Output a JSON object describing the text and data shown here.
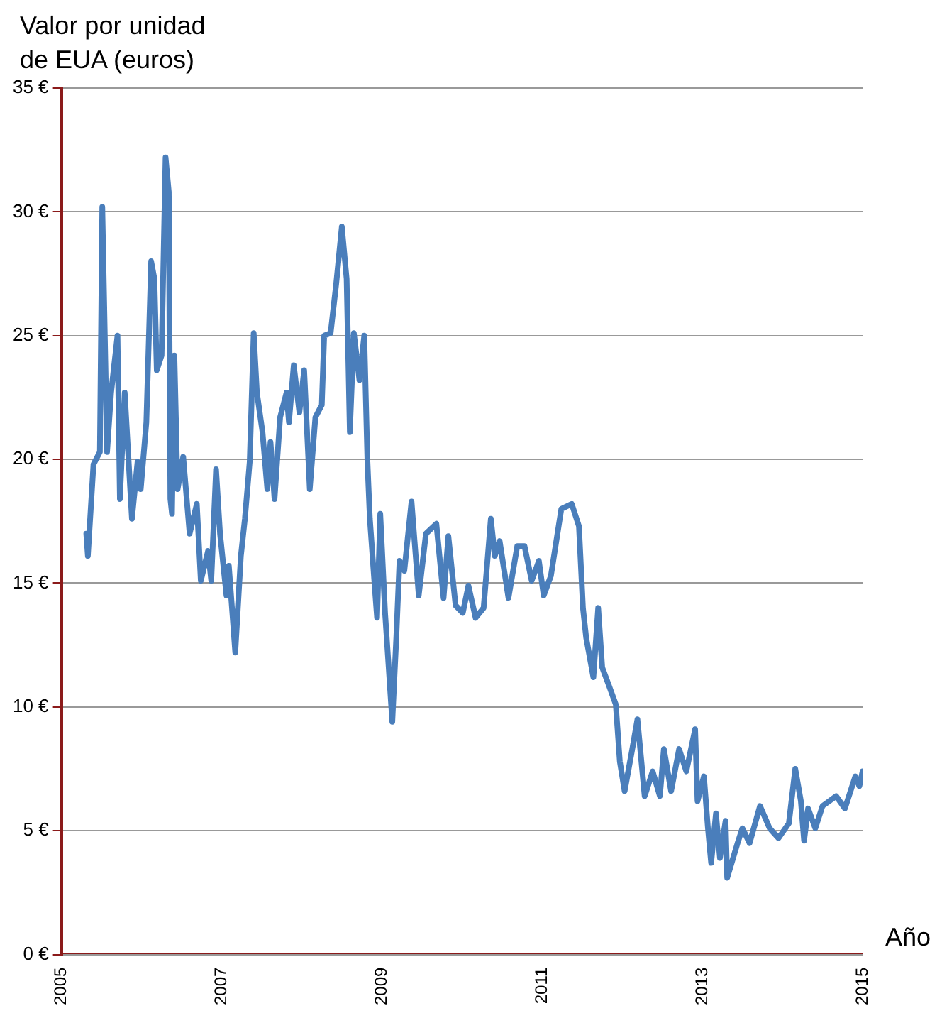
{
  "chart_data": {
    "type": "line",
    "ylabel": "Valor por unidad\nde EUA (euros)",
    "xlabel": "Año",
    "xlim": [
      2005,
      2015
    ],
    "xticks": [
      2005,
      2007,
      2009,
      2011,
      2013,
      2015
    ],
    "ylim": [
      0,
      35
    ],
    "yticks": [
      {
        "value": 0,
        "label": "0 €"
      },
      {
        "value": 5,
        "label": "5 €"
      },
      {
        "value": 10,
        "label": "10 €"
      },
      {
        "value": 15,
        "label": "15 €"
      },
      {
        "value": 20,
        "label": "20 €"
      },
      {
        "value": 25,
        "label": "25 €"
      },
      {
        "value": 30,
        "label": "30 €"
      },
      {
        "value": 35,
        "label": "35 €"
      }
    ],
    "grid": "y",
    "legend": false,
    "marker": "none",
    "line_style": "solid",
    "series": [
      {
        "color": "#4a7ebb",
        "x": [
          2005.31,
          2005.33,
          2005.4,
          2005.48,
          2005.51,
          2005.57,
          2005.62,
          2005.7,
          2005.73,
          2005.79,
          2005.88,
          2005.95,
          2005.99,
          2006.06,
          2006.12,
          2006.16,
          2006.19,
          2006.25,
          2006.3,
          2006.34,
          2006.36,
          2006.38,
          2006.41,
          2006.45,
          2006.52,
          2006.6,
          2006.69,
          2006.74,
          2006.83,
          2006.87,
          2006.93,
          2006.98,
          2007.06,
          2007.09,
          2007.17,
          2007.24,
          2007.29,
          2007.35,
          2007.4,
          2007.44,
          2007.51,
          2007.57,
          2007.61,
          2007.66,
          2007.73,
          2007.81,
          2007.84,
          2007.9,
          2007.97,
          2008.03,
          2008.1,
          2008.17,
          2008.25,
          2008.28,
          2008.36,
          2008.43,
          2008.5,
          2008.56,
          2008.6,
          2008.65,
          2008.72,
          2008.78,
          2008.82,
          2008.85,
          2008.91,
          2008.94,
          2008.98,
          2009.04,
          2009.13,
          2009.18,
          2009.22,
          2009.28,
          2009.37,
          2009.46,
          2009.55,
          2009.68,
          2009.77,
          2009.83,
          2009.92,
          2010.01,
          2010.08,
          2010.17,
          2010.27,
          2010.36,
          2010.41,
          2010.47,
          2010.58,
          2010.69,
          2010.78,
          2010.87,
          2010.96,
          2011.02,
          2011.11,
          2011.24,
          2011.37,
          2011.46,
          2011.51,
          2011.55,
          2011.64,
          2011.7,
          2011.75,
          2011.83,
          2011.92,
          2011.97,
          2012.03,
          2012.12,
          2012.19,
          2012.28,
          2012.38,
          2012.47,
          2012.52,
          2012.61,
          2012.71,
          2012.8,
          2012.91,
          2012.94,
          2013.02,
          2013.07,
          2013.11,
          2013.17,
          2013.22,
          2013.29,
          2013.31,
          2013.44,
          2013.5,
          2013.59,
          2013.72,
          2013.84,
          2013.95,
          2014.08,
          2014.16,
          2014.23,
          2014.27,
          2014.32,
          2014.41,
          2014.5,
          2014.67,
          2014.78,
          2014.91,
          2014.96,
          2015.0
        ],
        "values": [
          17.0,
          16.1,
          19.8,
          20.3,
          30.2,
          20.3,
          22.7,
          25.0,
          18.4,
          22.7,
          17.6,
          19.9,
          18.8,
          21.5,
          28.0,
          27.3,
          23.6,
          24.2,
          32.2,
          30.8,
          18.4,
          17.8,
          24.2,
          18.8,
          20.1,
          17.0,
          18.2,
          15.1,
          16.3,
          15.1,
          19.6,
          17.0,
          14.5,
          15.7,
          12.2,
          16.1,
          17.6,
          19.9,
          25.1,
          22.7,
          21.1,
          18.8,
          20.7,
          18.4,
          21.7,
          22.7,
          21.5,
          23.8,
          21.9,
          23.6,
          18.8,
          21.7,
          22.2,
          25.0,
          25.1,
          27.1,
          29.4,
          27.3,
          21.1,
          25.1,
          23.2,
          25.0,
          19.9,
          17.6,
          14.9,
          13.6,
          17.8,
          13.8,
          9.4,
          12.8,
          15.9,
          15.5,
          18.3,
          14.5,
          17.0,
          17.4,
          14.4,
          16.9,
          14.1,
          13.8,
          14.9,
          13.6,
          14.0,
          17.6,
          16.1,
          16.7,
          14.4,
          16.5,
          16.5,
          15.1,
          15.9,
          14.5,
          15.3,
          18.0,
          18.2,
          17.3,
          14.0,
          12.8,
          11.2,
          14.0,
          11.6,
          10.9,
          10.1,
          7.8,
          6.6,
          8.2,
          9.5,
          6.4,
          7.4,
          6.4,
          8.3,
          6.6,
          8.3,
          7.4,
          9.1,
          6.2,
          7.2,
          5.1,
          3.7,
          5.7,
          3.9,
          5.4,
          3.1,
          4.5,
          5.1,
          4.5,
          6.0,
          5.1,
          4.7,
          5.3,
          7.5,
          6.2,
          4.6,
          5.9,
          5.1,
          6.0,
          6.4,
          5.9,
          7.2,
          6.8,
          7.4
        ]
      }
    ]
  }
}
